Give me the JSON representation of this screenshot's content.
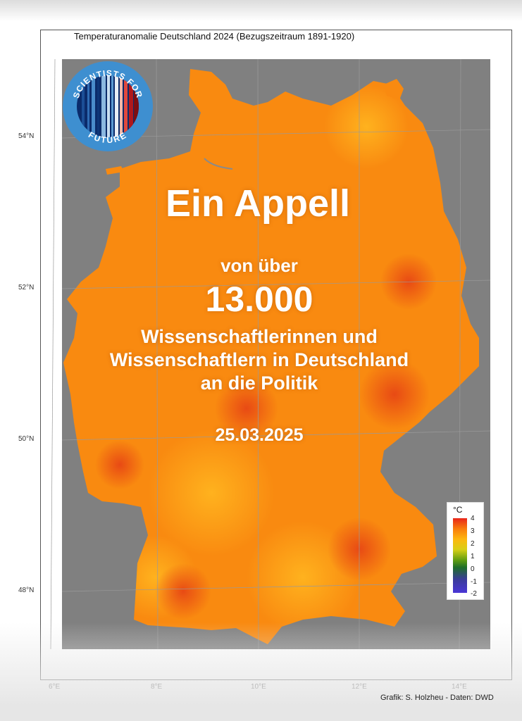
{
  "map": {
    "title": "Temperaturanomalie Deutschland 2024 (Bezugszeitraum 1891-1920)",
    "lat_labels": [
      "54°N",
      "52°N",
      "50°N",
      "48°N"
    ],
    "lon_labels": [
      "6°E",
      "8°E",
      "10°E",
      "12°E",
      "14°E"
    ],
    "credit": "Grafik: S. Holzheu - Daten: DWD",
    "colors": {
      "panel": "#808080",
      "land": "#f98a10",
      "hot": "#ef5a12"
    }
  },
  "legend": {
    "unit": "°C",
    "ticks": [
      "4",
      "3",
      "2",
      "1",
      "0",
      "-1",
      "-2"
    ]
  },
  "logo": {
    "text_top": "SCIENTISTS FOR",
    "text_bottom": "FUTURE",
    "ring_color": "#3e8fd0"
  },
  "overlay": {
    "headline": "Ein Appell",
    "line1": "von über",
    "count": "13.000",
    "line2": "Wissenschaftlerinnen und",
    "line3": "Wissenschaftlern in Deutschland",
    "line4": "an die Politik",
    "date": "25.03.2025"
  }
}
